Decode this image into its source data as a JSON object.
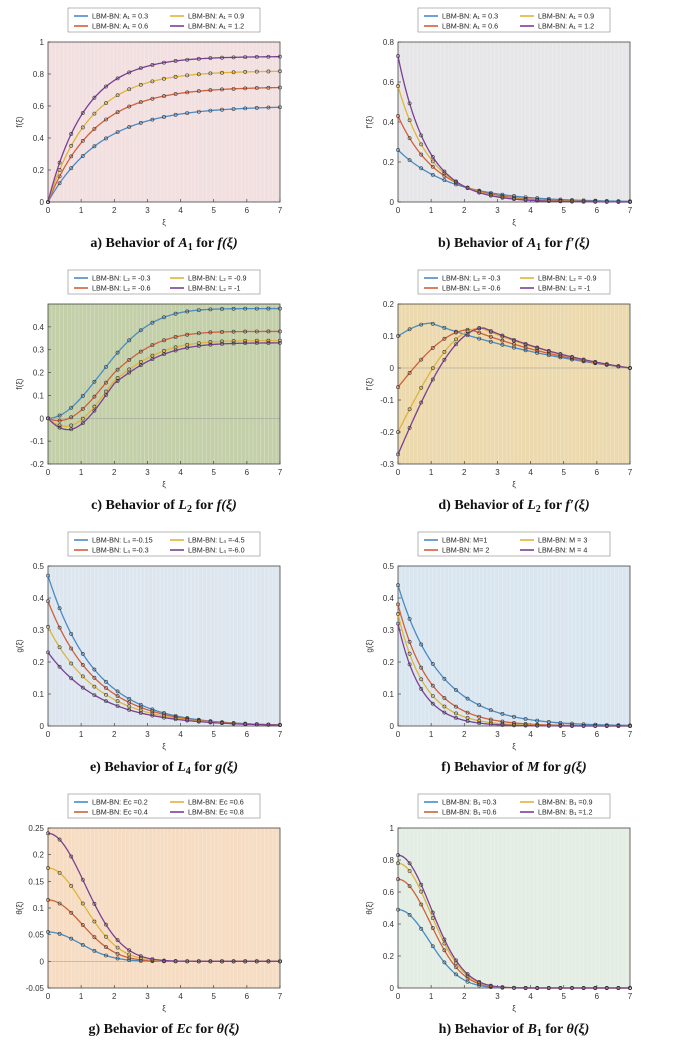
{
  "chart_data": [
    {
      "id": "a",
      "type": "line",
      "caption": {
        "prefix": "a) Behavior of ",
        "param": "A",
        "sub": "1",
        "suffix": " for ",
        "func": "f(ξ)"
      },
      "ylabel": "f(ξ)",
      "xlabel": "ξ",
      "xlim": [
        0,
        7
      ],
      "ylim": [
        0,
        1
      ],
      "yticks": [
        "0",
        "0.2",
        "0.4",
        "0.6",
        "0.8",
        "1"
      ],
      "yvals": [
        0,
        0.2,
        0.4,
        0.6,
        0.8,
        1
      ],
      "xticks": [
        "0",
        "1",
        "2",
        "3",
        "4",
        "5",
        "6",
        "7"
      ],
      "bg": "#f2dfe0",
      "legend": [
        "LBM-BN:  A₁ = 0.3",
        "LBM-BN:  A₁ = 0.9",
        "LBM-BN:  A₁ = 0.6",
        "LBM-BN:  A₁ = 1.2"
      ],
      "legend_colors": [
        "#4a8bc4",
        "#e0b33a",
        "#d0603a",
        "#7b3f94"
      ],
      "series": [
        {
          "name": "A1 = 0.3",
          "color": "#4a8bc4",
          "curve": "sat",
          "v0": 0,
          "vinf": 0.6,
          "k": 0.62
        },
        {
          "name": "A1 = 0.6",
          "color": "#d0603a",
          "curve": "sat",
          "v0": 0,
          "vinf": 0.72,
          "k": 0.72
        },
        {
          "name": "A1 = 0.9",
          "color": "#e0b33a",
          "curve": "sat",
          "v0": 0,
          "vinf": 0.82,
          "k": 0.8
        },
        {
          "name": "A1 = 1.2",
          "color": "#7b3f94",
          "curve": "sat",
          "v0": 0,
          "vinf": 0.91,
          "k": 0.9
        }
      ]
    },
    {
      "id": "b",
      "type": "line",
      "caption": {
        "prefix": "b) Behavior of ",
        "param": "A",
        "sub": "1",
        "suffix": " for ",
        "func": "f′(ξ)"
      },
      "ylabel": "f′(ξ)",
      "xlabel": "ξ",
      "xlim": [
        0,
        7
      ],
      "ylim": [
        0,
        0.8
      ],
      "yticks": [
        "0",
        "0.2",
        "0.4",
        "0.6",
        "0.8"
      ],
      "yvals": [
        0,
        0.2,
        0.4,
        0.6,
        0.8
      ],
      "xticks": [
        "0",
        "1",
        "2",
        "3",
        "4",
        "5",
        "6",
        "7"
      ],
      "bg": "#e6e6e8",
      "legend": [
        "LBM-BN:  A₁ = 0.3",
        "LBM-BN:  A₁ = 0.9",
        "LBM-BN:  A₁ = 0.6",
        "LBM-BN:  A₁ = 1.2"
      ],
      "legend_colors": [
        "#4a8bc4",
        "#e0b33a",
        "#d0603a",
        "#7b3f94"
      ],
      "series": [
        {
          "name": "A1 = 0.3",
          "color": "#4a8bc4",
          "curve": "dec",
          "v0": 0.26,
          "k": 0.62
        },
        {
          "name": "A1 = 0.6",
          "color": "#d0603a",
          "curve": "dec",
          "v0": 0.43,
          "k": 0.85
        },
        {
          "name": "A1 = 0.9",
          "color": "#e0b33a",
          "curve": "dec",
          "v0": 0.58,
          "k": 1.0
        },
        {
          "name": "A1 = 1.2",
          "color": "#7b3f94",
          "curve": "dec",
          "v0": 0.73,
          "k": 1.12
        }
      ]
    },
    {
      "id": "c",
      "type": "line",
      "caption": {
        "prefix": "c) Behavior of ",
        "param": "L",
        "sub": "2",
        "suffix": " for ",
        "func": "f(ξ)"
      },
      "ylabel": "f(ξ)",
      "xlabel": "ξ",
      "xlim": [
        0,
        7
      ],
      "ylim": [
        -0.2,
        0.5
      ],
      "yticks": [
        "-0.2",
        "-0.1",
        "0",
        "0.1",
        "0.2",
        "0.3",
        "0.4"
      ],
      "yvals": [
        -0.2,
        -0.1,
        0,
        0.1,
        0.2,
        0.3,
        0.4
      ],
      "xticks": [
        "0",
        "1",
        "2",
        "3",
        "4",
        "5",
        "6",
        "7"
      ],
      "bg": "#c3cfa8",
      "legend": [
        "LBM-BN:  L₂ = -0.3",
        "LBM-BN:  L₂ = -0.9",
        "LBM-BN:  L₂ = -0.6",
        "LBM-BN:  L₂ = -1"
      ],
      "legend_colors": [
        "#4a8bc4",
        "#e0b33a",
        "#d0603a",
        "#7b3f94"
      ],
      "series": [
        {
          "name": "L2 = -0.3",
          "color": "#4a8bc4",
          "curve": "sig",
          "c0": 0.0,
          "a": 0.48,
          "d": 0.0,
          "w": 1.0,
          "ainf": 0.48
        },
        {
          "name": "L2 = -0.6",
          "color": "#d0603a",
          "curve": "sig",
          "c0": 0.0,
          "a": 0.38,
          "d": -0.04,
          "w": 0.9,
          "ainf": 0.38
        },
        {
          "name": "L2 = -0.9",
          "color": "#e0b33a",
          "curve": "sig",
          "c0": 0.0,
          "a": 0.34,
          "d": -0.08,
          "w": 0.8,
          "ainf": 0.34
        },
        {
          "name": "L2 = -1",
          "color": "#7b3f94",
          "curve": "sig",
          "c0": 0.0,
          "a": 0.33,
          "d": -0.1,
          "w": 0.75,
          "ainf": 0.33
        }
      ]
    },
    {
      "id": "d",
      "type": "line",
      "caption": {
        "prefix": "d) Behavior of ",
        "param": "L",
        "sub": "2",
        "suffix": " for ",
        "func": "f′(ξ)"
      },
      "ylabel": "f′(ξ)",
      "xlabel": "ξ",
      "xlim": [
        0,
        7
      ],
      "ylim": [
        -0.3,
        0.2
      ],
      "yticks": [
        "-0.3",
        "-0.2",
        "-0.1",
        "0",
        "0.1",
        "0.2"
      ],
      "yvals": [
        -0.3,
        -0.2,
        -0.1,
        0,
        0.1,
        0.2
      ],
      "xticks": [
        "0",
        "1",
        "2",
        "3",
        "4",
        "5",
        "6",
        "7"
      ],
      "bg": "#ecd9ad",
      "legend": [
        "LBM-BN:  L₂ = -0.3",
        "LBM-BN:  L₂ = -0.9",
        "LBM-BN:  L₂ = -0.6",
        "LBM-BN:  L₂ = -1"
      ],
      "legend_colors": [
        "#4a8bc4",
        "#e0b33a",
        "#d0603a",
        "#7b3f94"
      ],
      "series": [
        {
          "name": "L2 = -0.3",
          "color": "#4a8bc4",
          "curve": "hump",
          "v0": 0.1,
          "peak": 0.14,
          "xp": 1.0
        },
        {
          "name": "L2 = -0.6",
          "color": "#d0603a",
          "curve": "hump",
          "v0": -0.06,
          "peak": 0.12,
          "xp": 2.2
        },
        {
          "name": "L2 = -0.9",
          "color": "#e0b33a",
          "curve": "hump",
          "v0": -0.2,
          "peak": 0.125,
          "xp": 2.5
        },
        {
          "name": "L2 = -1",
          "color": "#7b3f94",
          "curve": "hump",
          "v0": -0.27,
          "peak": 0.125,
          "xp": 2.6
        }
      ]
    },
    {
      "id": "e",
      "type": "line",
      "caption": {
        "prefix": "e) Behavior of ",
        "param": "L",
        "sub": "4",
        "suffix": " for ",
        "func": "g(ξ)"
      },
      "ylabel": "g(ξ)",
      "xlabel": "ξ",
      "xlim": [
        0,
        7
      ],
      "ylim": [
        0,
        0.5
      ],
      "yticks": [
        "0",
        "0.1",
        "0.2",
        "0.3",
        "0.4",
        "0.5"
      ],
      "yvals": [
        0,
        0.1,
        0.2,
        0.3,
        0.4,
        0.5
      ],
      "xticks": [
        "0",
        "1",
        "2",
        "3",
        "4",
        "5",
        "6",
        "7"
      ],
      "bg": "#dde6ef",
      "legend": [
        "LBM-BN:  L₄ =-0.15",
        "LBM-BN:  L₄ =-4.5",
        "LBM-BN:  L₄ =-0.3",
        "LBM-BN:  L₄ =-6.0"
      ],
      "legend_colors": [
        "#4a8bc4",
        "#e0b33a",
        "#d0603a",
        "#7b3f94"
      ],
      "series": [
        {
          "name": "L4 = -0.15",
          "color": "#4a8bc4",
          "curve": "dec",
          "v0": 0.47,
          "k": 0.7
        },
        {
          "name": "L4 = -0.3",
          "color": "#d0603a",
          "curve": "dec",
          "v0": 0.39,
          "k": 0.68
        },
        {
          "name": "L4 = -4.5",
          "color": "#e0b33a",
          "curve": "dec",
          "v0": 0.31,
          "k": 0.66
        },
        {
          "name": "L4 = -6.0",
          "color": "#7b3f94",
          "curve": "dec",
          "v0": 0.23,
          "k": 0.62
        }
      ]
    },
    {
      "id": "f",
      "type": "line",
      "caption": {
        "prefix": "f) Behavior of ",
        "param": "M",
        "sub": "",
        "suffix": " for ",
        "func": "g(ξ)"
      },
      "ylabel": "g(ξ)",
      "xlabel": "ξ",
      "xlim": [
        0,
        7
      ],
      "ylim": [
        0,
        0.5
      ],
      "yticks": [
        "0",
        "0.1",
        "0.2",
        "0.3",
        "0.4",
        "0.5"
      ],
      "yvals": [
        0,
        0.1,
        0.2,
        0.3,
        0.4,
        0.5
      ],
      "xticks": [
        "0",
        "1",
        "2",
        "3",
        "4",
        "5",
        "6",
        "7"
      ],
      "bg": "#dae6ef",
      "legend": [
        "LBM-BN:  M=1",
        "LBM-BN:  M = 3",
        "LBM-BN:  M= 2",
        "LBM-BN:  M = 4"
      ],
      "legend_colors": [
        "#4a8bc4",
        "#e0b33a",
        "#d0603a",
        "#7b3f94"
      ],
      "series": [
        {
          "name": "M = 1",
          "color": "#4a8bc4",
          "curve": "dec",
          "v0": 0.44,
          "k": 0.78
        },
        {
          "name": "M = 2",
          "color": "#d0603a",
          "curve": "dec",
          "v0": 0.38,
          "k": 1.05
        },
        {
          "name": "M = 3",
          "color": "#e0b33a",
          "curve": "dec",
          "v0": 0.35,
          "k": 1.25
        },
        {
          "name": "M = 4",
          "color": "#7b3f94",
          "curve": "dec",
          "v0": 0.32,
          "k": 1.45
        }
      ]
    },
    {
      "id": "g",
      "type": "line",
      "caption": {
        "prefix": "g) Behavior of ",
        "param": "Ec",
        "sub": "",
        "suffix": " for ",
        "func": "θ(ξ)"
      },
      "ylabel": "θ(ξ)",
      "xlabel": "ξ",
      "xlim": [
        0,
        7
      ],
      "ylim": [
        -0.05,
        0.25
      ],
      "yticks": [
        "-0.05",
        "0",
        "0.05",
        "0.1",
        "0.15",
        "0.2",
        "0.25"
      ],
      "yvals": [
        -0.05,
        0,
        0.05,
        0.1,
        0.15,
        0.2,
        0.25
      ],
      "xticks": [
        "0",
        "1",
        "2",
        "3",
        "4",
        "5",
        "6",
        "7"
      ],
      "bg": "#f6dcc2",
      "legend": [
        "LBM-BN:  Ec =0.2",
        "LBM-BN:  Ec =0.6",
        "LBM-BN:  Ec =0.4",
        "LBM-BN:  Ec =0.8"
      ],
      "legend_colors": [
        "#4a8bc4",
        "#e0b33a",
        "#d0603a",
        "#7b3f94"
      ],
      "series": [
        {
          "name": "Ec = 0.2",
          "color": "#4a8bc4",
          "curve": "gauss",
          "v0": 0.055,
          "s": 1.9
        },
        {
          "name": "Ec = 0.4",
          "color": "#d0603a",
          "curve": "gauss",
          "v0": 0.115,
          "s": 2.1
        },
        {
          "name": "Ec = 0.6",
          "color": "#e0b33a",
          "curve": "gauss",
          "v0": 0.175,
          "s": 2.3
        },
        {
          "name": "Ec = 0.8",
          "color": "#7b3f94",
          "curve": "gauss",
          "v0": 0.24,
          "s": 2.45
        }
      ]
    },
    {
      "id": "h",
      "type": "line",
      "caption": {
        "prefix": "h) Behavior of ",
        "param": "B",
        "sub": "1",
        "suffix": " for ",
        "func": "θ(ξ)"
      },
      "ylabel": "θ(ξ)",
      "xlabel": "ξ",
      "xlim": [
        0,
        7
      ],
      "ylim": [
        0,
        1
      ],
      "yticks": [
        "0",
        "0.2",
        "0.4",
        "0.6",
        "0.8",
        "1"
      ],
      "yvals": [
        0,
        0.2,
        0.4,
        0.6,
        0.8,
        1
      ],
      "xticks": [
        "0",
        "1",
        "2",
        "3",
        "4",
        "5",
        "6",
        "7"
      ],
      "bg": "#e3ede3",
      "legend": [
        "LBM-BN:  B₁ =0.3",
        "LBM-BN:  B₁ =0.9",
        "LBM-BN:  B₁ =0.6",
        "LBM-BN:  B₁ =1.2"
      ],
      "legend_colors": [
        "#4a8bc4",
        "#e0b33a",
        "#d0603a",
        "#7b3f94"
      ],
      "series": [
        {
          "name": "B1 = 0.3",
          "color": "#4a8bc4",
          "curve": "gauss",
          "v0": 0.49,
          "s": 1.75
        },
        {
          "name": "B1 = 0.6",
          "color": "#d0603a",
          "curve": "gauss",
          "v0": 0.68,
          "s": 1.85
        },
        {
          "name": "B1 = 0.9",
          "color": "#e0b33a",
          "curve": "gauss",
          "v0": 0.78,
          "s": 1.9
        },
        {
          "name": "B1 = 1.2",
          "color": "#7b3f94",
          "curve": "gauss",
          "v0": 0.83,
          "s": 1.95
        }
      ]
    }
  ]
}
